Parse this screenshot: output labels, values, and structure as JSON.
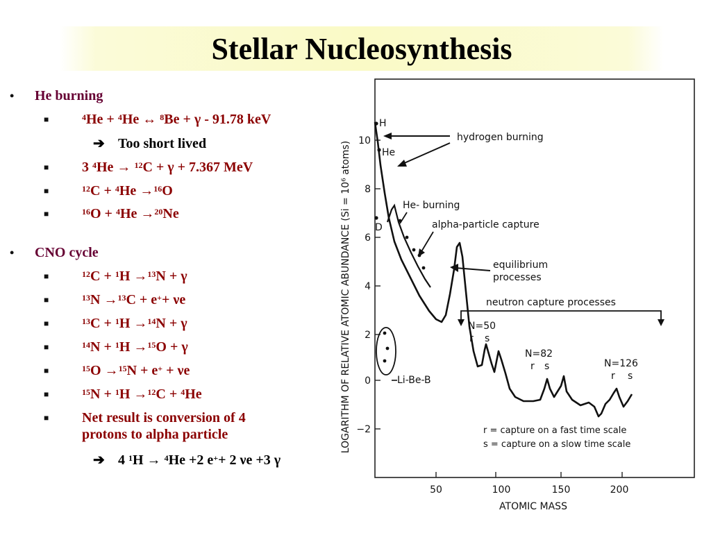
{
  "slide": {
    "title": "Stellar Nucleosynthesis"
  },
  "left": {
    "he_heading": "He burning",
    "he_r1": {
      "a": "4",
      "b": "He + ",
      "c": "4",
      "d": "He ↔ ",
      "e": "8",
      "f": "Be + γ - 91.78 keV"
    },
    "he_r1_sub": "Too short lived",
    "he_r2": {
      "a": "3 ",
      "b": "4",
      "c": "He → ",
      "d": "12",
      "e": "C + γ + 7.367 MeV"
    },
    "he_r3": {
      "a": "12",
      "b": "C + ",
      "c": "4",
      "d": "He →",
      "e": "16",
      "f": "O"
    },
    "he_r4": {
      "a": "16",
      "b": "O + ",
      "c": "4",
      "d": "He →",
      "e": "20",
      "f": "Ne"
    },
    "cno_heading": "CNO cycle",
    "cno_r1": {
      "a": "12",
      "b": "C + ",
      "c": "1",
      "d": "H →",
      "e": "13",
      "f": "N + γ"
    },
    "cno_r2": {
      "a": "13",
      "b": "N →",
      "c": "13",
      "d": "C + e",
      "e": "+",
      "f": "+ νe"
    },
    "cno_r3": {
      "a": "13",
      "b": "C + ",
      "c": "1",
      "d": "H →",
      "e": "14",
      "f": "N + γ"
    },
    "cno_r4": {
      "a": "14",
      "b": "N + ",
      "c": "1",
      "d": "H →",
      "e": "15",
      "f": "O + γ"
    },
    "cno_r5": {
      "a": "15",
      "b": "O →",
      "c": "15",
      "d": "N + e",
      "e": "+",
      "f": " + νe"
    },
    "cno_r6": {
      "a": "15",
      "b": "N + ",
      "c": "1",
      "d": "H →",
      "e": "12",
      "f": "C + ",
      "g": "4",
      "h": "He"
    },
    "cno_net": "Net result is conversion of 4 protons to alpha particle",
    "cno_sum": {
      "a": "4 ",
      "b": "1",
      "c": "H → ",
      "d": "4",
      "e": "He +2 e",
      "f": "+",
      "g": "+ 2 νe +3 γ"
    }
  },
  "figure": {
    "ylabel": "LOGARITHM OF RELATIVE ATOMIC ABUNDANCE (Si = 10⁶ atoms)",
    "xlabel": "ATOMIC MASS",
    "xticks": [
      "50",
      "100",
      "150",
      "200"
    ],
    "yticks": [
      "10",
      "8",
      "6",
      "4",
      "2",
      "0",
      "−2"
    ],
    "labels": {
      "H": "H",
      "He": "He",
      "D": "D",
      "LiBeB": "Li-Be-B",
      "hydrogen_burning": "hydrogen burning",
      "he_burning": "He- burning",
      "alpha_capture": "alpha-particle capture",
      "equilibrium_1": "equilibrium",
      "equilibrium_2": "processes",
      "neutron_capture": "neutron capture processes",
      "n50": "N=50",
      "n82": "N=82",
      "n126": "N=126",
      "r": "r",
      "s": "s",
      "legend_r": "r = capture on a fast time scale",
      "legend_s": "s = capture on a slow time scale"
    }
  },
  "colors": {
    "heading": "#660033",
    "reaction": "#8b0000",
    "title_band": "#fafac6"
  }
}
